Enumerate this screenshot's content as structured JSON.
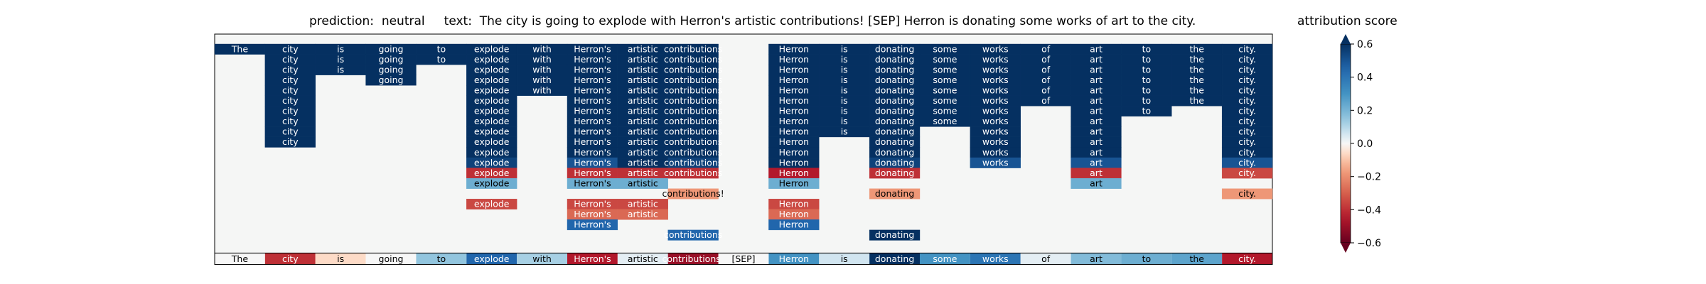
{
  "chart_data": {
    "type": "heatmap",
    "title": "prediction:  neutral     text:  The city is going to explode with Herron's artistic contributions! [SEP] Herron is donating some works of art to the city.",
    "colorbar_label": "attribution score",
    "colorbar_ticks": [
      "0.6",
      "0.4",
      "0.2",
      "0.0",
      "−0.2",
      "−0.4",
      "−0.6"
    ],
    "colorbar_range": [
      -0.6,
      0.6
    ],
    "colormap": "RdBu",
    "columns": [
      "The",
      "city",
      "is",
      "going",
      "to",
      "explode",
      "with",
      "Herron's",
      "artistic",
      "contributions!",
      "[SEP]",
      "Herron",
      "is",
      "donating",
      "some",
      "works",
      "of",
      "art",
      "to",
      "the",
      "city."
    ],
    "tree_rows": [
      [
        [
          "The",
          0.6
        ],
        [
          "city",
          0.6
        ],
        [
          "is",
          0.6
        ],
        [
          "going",
          0.6
        ],
        [
          "to",
          0.6
        ],
        [
          "explode",
          0.6
        ],
        [
          "with",
          0.6
        ],
        [
          "Herron's",
          0.6
        ],
        [
          "artistic",
          0.6
        ],
        [
          "contributions",
          0.6
        ],
        null,
        [
          "Herron",
          0.6
        ],
        [
          "is",
          0.6
        ],
        [
          "donating",
          0.6
        ],
        [
          "some",
          0.6
        ],
        [
          "works",
          0.6
        ],
        [
          "of",
          0.6
        ],
        [
          "art",
          0.6
        ],
        [
          "to",
          0.6
        ],
        [
          "the",
          0.6
        ],
        [
          "city.",
          0.6
        ]
      ],
      [
        null,
        [
          "city",
          0.6
        ],
        [
          "is",
          0.6
        ],
        [
          "going",
          0.6
        ],
        [
          "to",
          0.6
        ],
        [
          "explode",
          0.6
        ],
        [
          "with",
          0.6
        ],
        [
          "Herron's",
          0.6
        ],
        [
          "artistic",
          0.6
        ],
        [
          "contributions",
          0.6
        ],
        null,
        [
          "Herron",
          0.6
        ],
        [
          "is",
          0.6
        ],
        [
          "donating",
          0.6
        ],
        [
          "some",
          0.6
        ],
        [
          "works",
          0.6
        ],
        [
          "of",
          0.6
        ],
        [
          "art",
          0.6
        ],
        [
          "to",
          0.6
        ],
        [
          "the",
          0.6
        ],
        [
          "city.",
          0.6
        ]
      ],
      [
        null,
        [
          "city",
          0.6
        ],
        [
          "is",
          0.6
        ],
        [
          "going",
          0.6
        ],
        null,
        [
          "explode",
          0.6
        ],
        [
          "with",
          0.6
        ],
        [
          "Herron's",
          0.6
        ],
        [
          "artistic",
          0.6
        ],
        [
          "contributions",
          0.6
        ],
        null,
        [
          "Herron",
          0.6
        ],
        [
          "is",
          0.6
        ],
        [
          "donating",
          0.6
        ],
        [
          "some",
          0.6
        ],
        [
          "works",
          0.6
        ],
        [
          "of",
          0.6
        ],
        [
          "art",
          0.6
        ],
        [
          "to",
          0.6
        ],
        [
          "the",
          0.6
        ],
        [
          "city.",
          0.6
        ]
      ],
      [
        null,
        [
          "city",
          0.6
        ],
        null,
        [
          "going",
          0.6
        ],
        null,
        [
          "explode",
          0.6
        ],
        [
          "with",
          0.6
        ],
        [
          "Herron's",
          0.6
        ],
        [
          "artistic",
          0.6
        ],
        [
          "contributions",
          0.6
        ],
        null,
        [
          "Herron",
          0.6
        ],
        [
          "is",
          0.6
        ],
        [
          "donating",
          0.6
        ],
        [
          "some",
          0.6
        ],
        [
          "works",
          0.6
        ],
        [
          "of",
          0.6
        ],
        [
          "art",
          0.6
        ],
        [
          "to",
          0.6
        ],
        [
          "the",
          0.6
        ],
        [
          "city.",
          0.6
        ]
      ],
      [
        null,
        [
          "city",
          0.6
        ],
        null,
        null,
        null,
        [
          "explode",
          0.6
        ],
        [
          "with",
          0.6
        ],
        [
          "Herron's",
          0.6
        ],
        [
          "artistic",
          0.6
        ],
        [
          "contributions",
          0.6
        ],
        null,
        [
          "Herron",
          0.6
        ],
        [
          "is",
          0.6
        ],
        [
          "donating",
          0.6
        ],
        [
          "some",
          0.6
        ],
        [
          "works",
          0.6
        ],
        [
          "of",
          0.6
        ],
        [
          "art",
          0.6
        ],
        [
          "to",
          0.6
        ],
        [
          "the",
          0.6
        ],
        [
          "city.",
          0.6
        ]
      ],
      [
        null,
        [
          "city",
          0.6
        ],
        null,
        null,
        null,
        [
          "explode",
          0.6
        ],
        null,
        [
          "Herron's",
          0.6
        ],
        [
          "artistic",
          0.6
        ],
        [
          "contributions",
          0.6
        ],
        null,
        [
          "Herron",
          0.6
        ],
        [
          "is",
          0.6
        ],
        [
          "donating",
          0.6
        ],
        [
          "some",
          0.6
        ],
        [
          "works",
          0.6
        ],
        [
          "of",
          0.6
        ],
        [
          "art",
          0.6
        ],
        [
          "to",
          0.6
        ],
        [
          "the",
          0.6
        ],
        [
          "city.",
          0.6
        ]
      ],
      [
        null,
        [
          "city",
          0.6
        ],
        null,
        null,
        null,
        [
          "explode",
          0.6
        ],
        null,
        [
          "Herron's",
          0.6
        ],
        [
          "artistic",
          0.6
        ],
        [
          "contributions",
          0.6
        ],
        null,
        [
          "Herron",
          0.6
        ],
        [
          "is",
          0.6
        ],
        [
          "donating",
          0.6
        ],
        [
          "some",
          0.6
        ],
        [
          "works",
          0.6
        ],
        null,
        [
          "art",
          0.6
        ],
        [
          "to",
          0.6
        ],
        null,
        [
          "city.",
          0.6
        ]
      ],
      [
        null,
        [
          "city",
          0.6
        ],
        null,
        null,
        null,
        [
          "explode",
          0.6
        ],
        null,
        [
          "Herron's",
          0.6
        ],
        [
          "artistic",
          0.6
        ],
        [
          "contributions",
          0.6
        ],
        null,
        [
          "Herron",
          0.6
        ],
        [
          "is",
          0.6
        ],
        [
          "donating",
          0.6
        ],
        [
          "some",
          0.6
        ],
        [
          "works",
          0.6
        ],
        null,
        [
          "art",
          0.6
        ],
        null,
        null,
        [
          "city.",
          0.6
        ]
      ],
      [
        null,
        [
          "city",
          0.6
        ],
        null,
        null,
        null,
        [
          "explode",
          0.6
        ],
        null,
        [
          "Herron's",
          0.6
        ],
        [
          "artistic",
          0.6
        ],
        [
          "contributions",
          0.6
        ],
        null,
        [
          "Herron",
          0.6
        ],
        [
          "is",
          0.6
        ],
        [
          "donating",
          0.6
        ],
        null,
        [
          "works",
          0.6
        ],
        null,
        [
          "art",
          0.6
        ],
        null,
        null,
        [
          "city.",
          0.6
        ]
      ],
      [
        null,
        [
          "city",
          0.6
        ],
        null,
        null,
        null,
        [
          "explode",
          0.6
        ],
        null,
        [
          "Herron's",
          0.6
        ],
        [
          "artistic",
          0.6
        ],
        [
          "contributions",
          0.6
        ],
        null,
        [
          "Herron",
          0.6
        ],
        null,
        [
          "donating",
          0.6
        ],
        null,
        [
          "works",
          0.6
        ],
        null,
        [
          "art",
          0.6
        ],
        null,
        null,
        [
          "city.",
          0.6
        ]
      ],
      [
        null,
        null,
        null,
        null,
        null,
        [
          "explode",
          0.6
        ],
        null,
        [
          "Herron's",
          0.6
        ],
        [
          "artistic",
          0.6
        ],
        [
          "contributions",
          0.6
        ],
        null,
        [
          "Herron",
          0.6
        ],
        null,
        [
          "donating",
          0.6
        ],
        null,
        [
          "works",
          0.6
        ],
        null,
        [
          "art",
          0.6
        ],
        null,
        null,
        [
          "city.",
          0.6
        ]
      ],
      [
        null,
        null,
        null,
        null,
        null,
        [
          "explode",
          0.55
        ],
        null,
        [
          "Herron's",
          0.5
        ],
        [
          "artistic",
          0.6
        ],
        [
          "contributions",
          0.55
        ],
        null,
        [
          "Herron",
          0.6
        ],
        null,
        [
          "donating",
          0.55
        ],
        null,
        [
          "works",
          0.5
        ],
        null,
        [
          "art",
          0.5
        ],
        null,
        null,
        [
          "city.",
          0.5
        ]
      ],
      [
        null,
        null,
        null,
        null,
        null,
        [
          "explode",
          -0.4
        ],
        null,
        [
          "Herron's",
          -0.4
        ],
        [
          "artistic",
          -0.4
        ],
        [
          "contributions",
          -0.4
        ],
        null,
        [
          "Herron",
          -0.45
        ],
        null,
        [
          "donating",
          -0.4
        ],
        null,
        null,
        null,
        [
          "art",
          -0.4
        ],
        null,
        null,
        [
          "city.",
          -0.35
        ]
      ],
      [
        null,
        null,
        null,
        null,
        null,
        [
          "explode",
          0.22
        ],
        null,
        [
          "Herron's",
          0.22
        ],
        [
          "artistic",
          0.22
        ],
        null,
        null,
        [
          "Herron",
          0.22
        ],
        null,
        null,
        null,
        null,
        null,
        [
          "art",
          0.22
        ],
        null,
        null,
        null
      ],
      [
        null,
        null,
        null,
        null,
        null,
        null,
        null,
        null,
        null,
        [
          "contributions!",
          -0.18
        ],
        null,
        null,
        null,
        [
          "donating",
          -0.18
        ],
        null,
        null,
        null,
        null,
        null,
        null,
        [
          "city.",
          -0.18
        ]
      ],
      [
        null,
        null,
        null,
        null,
        null,
        [
          "explode",
          -0.35
        ],
        null,
        [
          "Herron's",
          -0.35
        ],
        [
          "artistic",
          -0.35
        ],
        null,
        null,
        [
          "Herron",
          -0.35
        ],
        null,
        null,
        null,
        null,
        null,
        null,
        null,
        null,
        null
      ],
      [
        null,
        null,
        null,
        null,
        null,
        null,
        null,
        [
          "Herron's",
          -0.28
        ],
        [
          "artistic",
          -0.28
        ],
        null,
        null,
        [
          "Herron",
          -0.28
        ],
        null,
        null,
        null,
        null,
        null,
        null,
        null,
        null,
        null
      ],
      [
        null,
        null,
        null,
        null,
        null,
        null,
        null,
        [
          "Herron's",
          0.45
        ],
        null,
        null,
        null,
        [
          "Herron",
          0.45
        ],
        null,
        null,
        null,
        null,
        null,
        null,
        null,
        null,
        null
      ],
      [
        null,
        null,
        null,
        null,
        null,
        null,
        null,
        null,
        null,
        [
          "contributions",
          0.45
        ],
        null,
        null,
        null,
        [
          "donating",
          0.6
        ],
        null,
        null,
        null,
        null,
        null,
        null,
        null
      ]
    ],
    "word_attributions": [
      [
        "The",
        0.0
      ],
      [
        "city",
        -0.4
      ],
      [
        "is",
        -0.06
      ],
      [
        "going",
        0.0
      ],
      [
        "to",
        0.15
      ],
      [
        "explode",
        0.45
      ],
      [
        "with",
        0.12
      ],
      [
        "Herron's",
        -0.45
      ],
      [
        "artistic",
        0.03
      ],
      [
        "contributions!",
        -0.5
      ],
      [
        "[SEP]",
        0.0
      ],
      [
        "Herron",
        0.3
      ],
      [
        "is",
        0.06
      ],
      [
        "donating",
        0.6
      ],
      [
        "some",
        0.3
      ],
      [
        "works",
        0.4
      ],
      [
        "of",
        0.03
      ],
      [
        "art",
        0.18
      ],
      [
        "to",
        0.22
      ],
      [
        "the",
        0.25
      ],
      [
        "city.",
        -0.45
      ]
    ]
  }
}
